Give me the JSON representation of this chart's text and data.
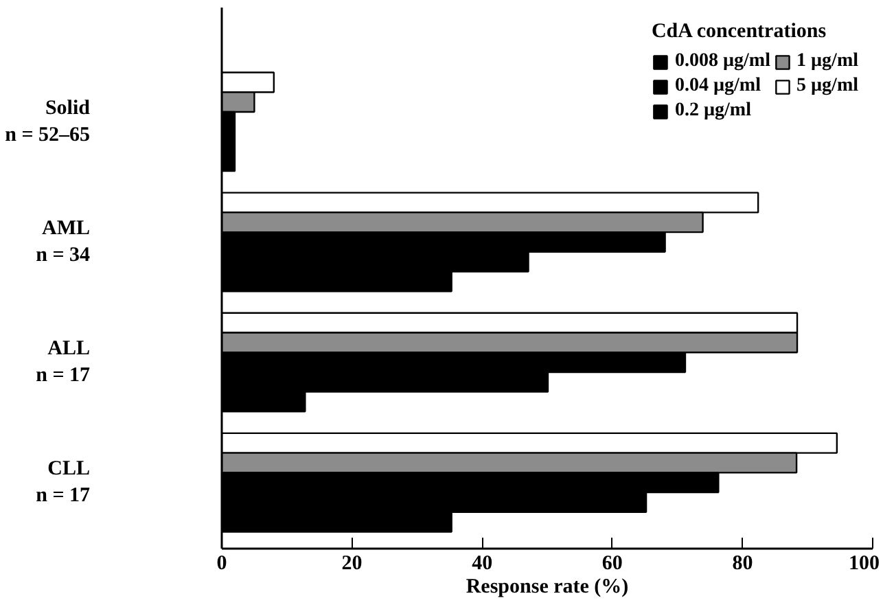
{
  "chart_data": {
    "type": "bar",
    "orientation": "horizontal",
    "xlabel": "Response rate (%)",
    "legend_title": "CdA concentrations",
    "legend": "top right",
    "grid": false,
    "categories": [
      "Solid\nn = 52–65",
      "AML\nn = 34",
      "ALL\nn = 17",
      "CLL\nn = 17"
    ],
    "xlim": [
      0,
      100
    ],
    "xticks": [
      0,
      20,
      40,
      60,
      80,
      100
    ],
    "series": [
      {
        "name": "5 µg/ml",
        "color": "#ffffff",
        "values": [
          8,
          82.4,
          88.4,
          94.5
        ]
      },
      {
        "name": "1 µg/ml",
        "color": "#8c8c8c",
        "values": [
          5,
          73.9,
          88.4,
          88.3
        ]
      },
      {
        "name": "0.2 µg/ml",
        "color": "#000000",
        "values": [
          2,
          68.1,
          71.2,
          76.3
        ]
      },
      {
        "name": "0.04 µg/ml",
        "color": "#000000",
        "values": [
          2,
          47.1,
          50.1,
          65.2
        ]
      },
      {
        "name": "0.008 µg/ml",
        "color": "#000000",
        "values": [
          2,
          35.3,
          12.8,
          35.3
        ]
      }
    ]
  }
}
